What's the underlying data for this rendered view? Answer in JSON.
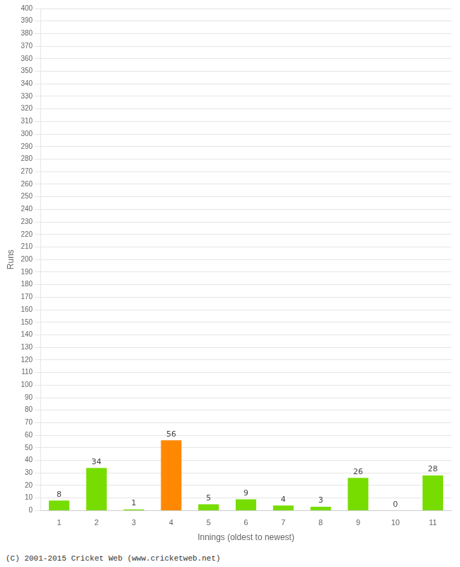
{
  "chart_data": {
    "type": "bar",
    "categories": [
      "1",
      "2",
      "3",
      "4",
      "5",
      "6",
      "7",
      "8",
      "9",
      "10",
      "11"
    ],
    "values": [
      8,
      34,
      1,
      56,
      5,
      9,
      4,
      3,
      26,
      0,
      28
    ],
    "colors": [
      "#77dd00",
      "#77dd00",
      "#77dd00",
      "#ff8800",
      "#77dd00",
      "#77dd00",
      "#77dd00",
      "#77dd00",
      "#77dd00",
      "#77dd00",
      "#77dd00"
    ],
    "xlabel": "Innings (oldest to newest)",
    "ylabel": "Runs",
    "ylim": [
      0,
      400
    ],
    "yticks": [
      0,
      10,
      20,
      30,
      40,
      50,
      60,
      70,
      80,
      90,
      100,
      110,
      120,
      130,
      140,
      150,
      160,
      170,
      180,
      190,
      200,
      210,
      220,
      230,
      240,
      250,
      260,
      270,
      280,
      290,
      300,
      310,
      320,
      330,
      340,
      350,
      360,
      370,
      380,
      390,
      400
    ],
    "grid": true,
    "data_labels": true,
    "footer": "(C) 2001-2015 Cricket Web (www.cricketweb.net)"
  }
}
